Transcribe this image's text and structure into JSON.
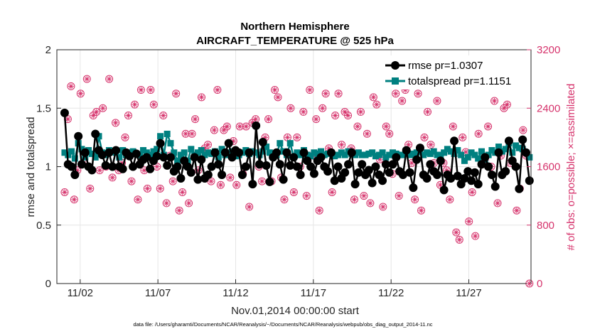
{
  "chart_data": {
    "type": "line",
    "title": "Northern Hemisphere",
    "subtitle": "AIRCRAFT_TEMPERATURE @ 525 hPa",
    "xlabel": "Nov.01,2014 00:00:00 start",
    "ylabel": "rmse and totalspread",
    "y2label": "# of obs: o=possible; ×=assimilated",
    "footnote": "data file: /Users/gharamti/Documents/NCAR/Reanalysis/~/Documents/NCAR/Reanalysis/webpub/obs_diag_output_2014-11.nc",
    "xlim": [
      0.5,
      31
    ],
    "ylim": [
      0,
      2
    ],
    "y2lim": [
      0,
      3200
    ],
    "xticks": [
      2,
      7,
      12,
      17,
      22,
      27
    ],
    "xtick_labels": [
      "11/02",
      "11/07",
      "11/12",
      "11/17",
      "11/22",
      "11/27"
    ],
    "yticks": [
      0,
      0.5,
      1,
      1.5,
      2
    ],
    "ytick_labels": [
      "0",
      "0.5",
      "1",
      "1.5",
      "2"
    ],
    "y2ticks": [
      0,
      800,
      1600,
      2400,
      3200
    ],
    "y2tick_labels": [
      "0",
      "800",
      "1600",
      "2400",
      "3200"
    ],
    "legend_position": "top-right",
    "series": [
      {
        "name": "rmse pr=1.0307",
        "color": "#000000",
        "axis": "left",
        "values": [
          1.46,
          1.02,
          1.0,
          0.93,
          1.26,
          1.02,
          1.12,
          1.0,
          0.97,
          1.28,
          1.14,
          1.1,
          1.01,
          1.12,
          1.0,
          1.14,
          1.0,
          0.98,
          1.12,
          1.09,
          1.0,
          1.11,
          1.02,
          1.06,
          1.08,
          0.98,
          1.05,
          1.09,
          1.2,
          1.08,
          1.01,
          1.08,
          0.96,
          1.0,
          0.9,
          1.05,
          1.0,
          0.95,
          1.08,
          0.89,
          1.06,
          0.9,
          0.93,
          1.0,
          1.12,
          1.02,
          0.93,
          1.12,
          1.2,
          1.08,
          1.14,
          1.12,
          0.93,
          1.0,
          1.12,
          0.85,
          1.35,
          1.02,
          1.21,
          1.01,
          0.87,
          1.08,
          1.12,
          1.02,
          0.89,
          1.12,
          1.01,
          1.08,
          1.0,
          0.93,
          1.12,
          1.05,
          1.0,
          0.94,
          1.05,
          1.08,
          1.0,
          0.96,
          1.12,
          0.88,
          1.0,
          0.9,
          0.95,
          1.02,
          1.12,
          0.85,
          0.95,
          1.02,
          0.93,
          0.97,
          0.86,
          1.0,
          0.93,
          0.88,
          1.02,
          0.95,
          1.02,
          1.08,
          0.96,
          0.93,
          1.14,
          0.95,
          0.82,
          1.06,
          1.16,
          0.93,
          0.9,
          1.02,
          0.96,
          0.93,
          1.05,
          0.8,
          0.93,
          0.9,
          1.22,
          0.92,
          0.85,
          0.9,
          0.96,
          0.88,
          0.95,
          0.85,
          1.02,
          1.08,
          1.0,
          0.93,
          0.83,
          1.12,
          0.93,
          0.96,
          1.22,
          1.05,
          1.0,
          0.81,
          1.23,
          1.12,
          0.88
        ]
      },
      {
        "name": "totalspread pr=1.1151",
        "color": "#008080",
        "axis": "left",
        "values": [
          1.12,
          1.1,
          1.13,
          1.07,
          1.2,
          1.15,
          1.08,
          1.14,
          1.11,
          1.08,
          1.26,
          1.12,
          1.1,
          1.14,
          1.13,
          1.12,
          1.08,
          1.14,
          1.1,
          1.12,
          1.13,
          1.11,
          1.1,
          1.14,
          1.12,
          1.1,
          1.13,
          1.15,
          1.26,
          1.1,
          1.28,
          1.2,
          1.12,
          1.05,
          1.1,
          1.12,
          1.05,
          1.15,
          1.1,
          1.12,
          1.14,
          1.1,
          1.12,
          1.11,
          1.13,
          1.08,
          1.15,
          1.1,
          1.12,
          1.13,
          1.09,
          1.1,
          1.12,
          1.14,
          1.11,
          1.13,
          1.12,
          1.1,
          1.13,
          1.17,
          1.12,
          1.08,
          1.1,
          1.2,
          1.13,
          1.1,
          1.2,
          1.08,
          1.12,
          1.1,
          1.14,
          1.1,
          1.09,
          1.12,
          1.11,
          1.13,
          1.1,
          1.11,
          1.12,
          1.09,
          1.1,
          1.12,
          1.1,
          1.13,
          1.11,
          1.1,
          1.12,
          1.1,
          1.1,
          1.11,
          1.12,
          1.09,
          1.1,
          1.12,
          1.08,
          1.1,
          1.12,
          1.11,
          1.1,
          1.1,
          1.12,
          1.1,
          1.11,
          1.12,
          1.13,
          1.1,
          1.12,
          1.11,
          1.13,
          1.1,
          1.1,
          1.12,
          1.15,
          1.13,
          1.11,
          1.14,
          1.1,
          1.05,
          1.08,
          1.12,
          1.1,
          1.07,
          1.13,
          1.06,
          1.1,
          1.14,
          1.12,
          1.17,
          1.13,
          1.15,
          1.2,
          1.12,
          1.18,
          1.16,
          1.15,
          1.12,
          1.08
        ]
      },
      {
        "name": "# of obs possible/assimilated",
        "color": "#d6336c",
        "axis": "right",
        "marker": "circle-star",
        "values": [
          1250,
          2250,
          2700,
          1150,
          1550,
          2600,
          1650,
          2800,
          1300,
          2300,
          2350,
          1550,
          2400,
          1600,
          2800,
          1450,
          2200,
          1550,
          1650,
          2000,
          2300,
          1400,
          2450,
          1150,
          2650,
          1550,
          1300,
          2650,
          2450,
          1600,
          1300,
          2300,
          1100,
          1750,
          1400,
          2600,
          1000,
          1250,
          2050,
          1100,
          2050,
          2250,
          1550,
          2550,
          1850,
          1900,
          1400,
          2100,
          2650,
          1350,
          2100,
          2150,
          1450,
          1950,
          1350,
          2150,
          1500,
          2150,
          1050,
          2200,
          2250,
          1600,
          1400,
          2000,
          2250,
          1400,
          2650,
          2550,
          1450,
          1150,
          2000,
          2400,
          1250,
          2000,
          1600,
          2350,
          1200,
          2650,
          1750,
          2250,
          1000,
          2400,
          2600,
          1850,
          1250,
          2300,
          2600,
          1900,
          2350,
          2300,
          1850,
          1150,
          2150,
          2350,
          1200,
          2050,
          1100,
          2550,
          2450,
          1700,
          1050,
          2150,
          2050,
          1500,
          2600,
          1200,
          2500,
          2650,
          1900,
          1650,
          1150,
          2600,
          1000,
          2000,
          2350,
          1900,
          1650,
          2500,
          1350,
          1650,
          1550,
          1150,
          2150,
          700,
          600,
          2000,
          1800,
          850,
          1250,
          650,
          2050,
          1700,
          1700,
          2150,
          1600,
          2500,
          1100,
          1750,
          2400,
          2450,
          1650,
          2750,
          1000,
          1300,
          2100,
          1750,
          0
        ]
      }
    ]
  }
}
